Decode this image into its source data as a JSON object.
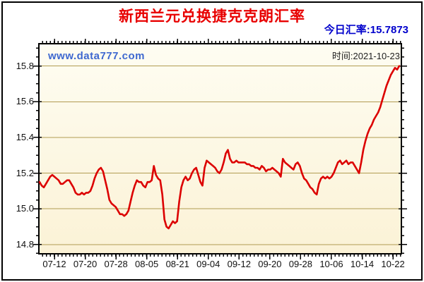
{
  "header": {
    "title": "新西兰元兑换捷克克朗汇率",
    "today_rate": "今日汇率:15.7873"
  },
  "plot": {
    "watermark": "www.data777.com",
    "time_label": "时间:2021-10-23"
  },
  "colors": {
    "title": "#e80000",
    "today_rate": "#0000cc",
    "watermark": "#3e68d0",
    "time_label": "#222222",
    "line": "#dc0000",
    "grid": "#b19c52",
    "axis": "#000000",
    "plot_bg_top": "#fefdf2",
    "plot_bg_bottom": "#fbf2d6"
  },
  "chart_data": {
    "type": "line",
    "title": "新西兰元兑换捷克克朗汇率",
    "date": "2021-10-23",
    "today_value": 15.7873,
    "xlabel": "",
    "ylabel": "",
    "x_tick_labels": [
      "07-12",
      "07-20",
      "07-28",
      "08-05",
      "08-21",
      "09-04",
      "09-12",
      "09-20",
      "09-28",
      "10-06",
      "10-14",
      "10-22"
    ],
    "y_ticks": [
      14.8,
      15.0,
      15.2,
      15.4,
      15.6,
      15.8
    ],
    "y_tick_labels": [
      "14.8",
      "15.0",
      "15.2",
      "15.4",
      "15.6",
      "15.8"
    ],
    "ylim": [
      14.748,
      15.925
    ],
    "y_minor_step": 0.05,
    "x_minor_per_major": 8,
    "grid": "horizontal-only",
    "legend": "none",
    "series": [
      {
        "name": "新西兰元兑换捷克克朗",
        "values": [
          15.15,
          15.13,
          15.12,
          15.14,
          15.16,
          15.18,
          15.19,
          15.18,
          15.17,
          15.16,
          15.14,
          15.14,
          15.15,
          15.16,
          15.16,
          15.14,
          15.12,
          15.09,
          15.08,
          15.08,
          15.09,
          15.08,
          15.09,
          15.09,
          15.1,
          15.13,
          15.17,
          15.2,
          15.22,
          15.23,
          15.21,
          15.16,
          15.11,
          15.05,
          15.03,
          15.02,
          15.01,
          14.99,
          14.97,
          14.97,
          14.96,
          14.97,
          14.99,
          15.04,
          15.09,
          15.13,
          15.16,
          15.15,
          15.15,
          15.13,
          15.12,
          15.15,
          15.15,
          15.16,
          15.24,
          15.19,
          15.17,
          15.16,
          15.08,
          14.94,
          14.9,
          14.89,
          14.91,
          14.93,
          14.92,
          14.93,
          15.04,
          15.12,
          15.16,
          15.18,
          15.16,
          15.17,
          15.2,
          15.22,
          15.23,
          15.19,
          15.15,
          15.13,
          15.23,
          15.27,
          15.26,
          15.25,
          15.24,
          15.23,
          15.21,
          15.2,
          15.22,
          15.26,
          15.31,
          15.33,
          15.28,
          15.26,
          15.26,
          15.27,
          15.26,
          15.26,
          15.26,
          15.26,
          15.25,
          15.25,
          15.24,
          15.24,
          15.23,
          15.23,
          15.22,
          15.24,
          15.23,
          15.21,
          15.22,
          15.22,
          15.23,
          15.22,
          15.21,
          15.2,
          15.18,
          15.28,
          15.26,
          15.25,
          15.24,
          15.23,
          15.22,
          15.25,
          15.26,
          15.24,
          15.2,
          15.17,
          15.16,
          15.14,
          15.12,
          15.11,
          15.09,
          15.08,
          15.14,
          15.17,
          15.18,
          15.17,
          15.18,
          15.17,
          15.18,
          15.2,
          15.23,
          15.26,
          15.27,
          15.25,
          15.26,
          15.27,
          15.25,
          15.26,
          15.26,
          15.24,
          15.22,
          15.2,
          15.26,
          15.33,
          15.38,
          15.42,
          15.45,
          15.47,
          15.5,
          15.52,
          15.54,
          15.57,
          15.61,
          15.65,
          15.69,
          15.72,
          15.75,
          15.77,
          15.79,
          15.78,
          15.8
        ]
      }
    ]
  }
}
